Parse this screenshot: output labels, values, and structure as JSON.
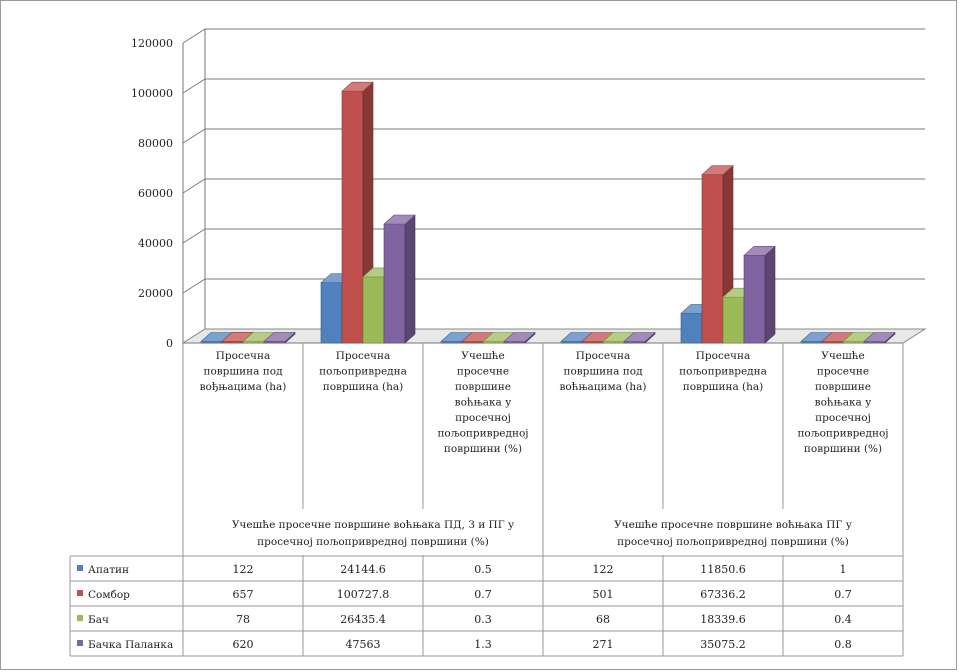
{
  "chart_data": {
    "type": "bar",
    "ylim": [
      0,
      120000
    ],
    "yticks": [
      "0",
      "20000",
      "40000",
      "60000",
      "80000",
      "100000",
      "120000"
    ],
    "grid": true,
    "legend": "table-left",
    "categories": [
      [
        "Просечна",
        "површина под",
        "вођњацима (ha)"
      ],
      [
        "Просечна",
        "пољопривредна",
        "површина (ha)"
      ],
      [
        "Учешће",
        "просечне",
        "површине",
        "воћњака у",
        "просечној",
        "пољопривредној",
        "површини (%)"
      ],
      [
        "Просечна",
        "површина под",
        "воћњацима (ha)"
      ],
      [
        "Просечна",
        "пољопривредна",
        "површина (ha)"
      ],
      [
        "Учешће",
        "просечне",
        "површине",
        "воћњака у",
        "просечној",
        "пољопривредној",
        "површини (%)"
      ]
    ],
    "groups": [
      [
        "Учешће просечне површине воћњака ПД, З и ПГ у",
        "просечној пољопривредној површини (%)"
      ],
      [
        "Учешће просечне површине воћњака ПГ у",
        "просечној пољопривредној површини (%)"
      ]
    ],
    "series": [
      {
        "name": "Апатин",
        "color": "#4f81bd",
        "values": [
          122,
          24144.6,
          0.5,
          122,
          11850.6,
          1
        ],
        "labels": [
          "122",
          "24144.6",
          "0.5",
          "122",
          "11850.6",
          "1"
        ]
      },
      {
        "name": "Сомбор",
        "color": "#c0504d",
        "values": [
          657,
          100727.8,
          0.7,
          501,
          67336.2,
          0.7
        ],
        "labels": [
          "657",
          "100727.8",
          "0.7",
          "501",
          "67336.2",
          "0.7"
        ]
      },
      {
        "name": "Бач",
        "color": "#9bbb59",
        "values": [
          78,
          26435.4,
          0.3,
          68,
          18339.6,
          0.4
        ],
        "labels": [
          "78",
          "26435.4",
          "0.3",
          "68",
          "18339.6",
          "0.4"
        ]
      },
      {
        "name": "Бачка Паланка",
        "color": "#8064a2",
        "values": [
          620,
          47563,
          1.3,
          271,
          35075.2,
          0.8
        ],
        "labels": [
          "620",
          "47563",
          "1.3",
          "271",
          "35075.2",
          "0.8"
        ]
      }
    ]
  }
}
